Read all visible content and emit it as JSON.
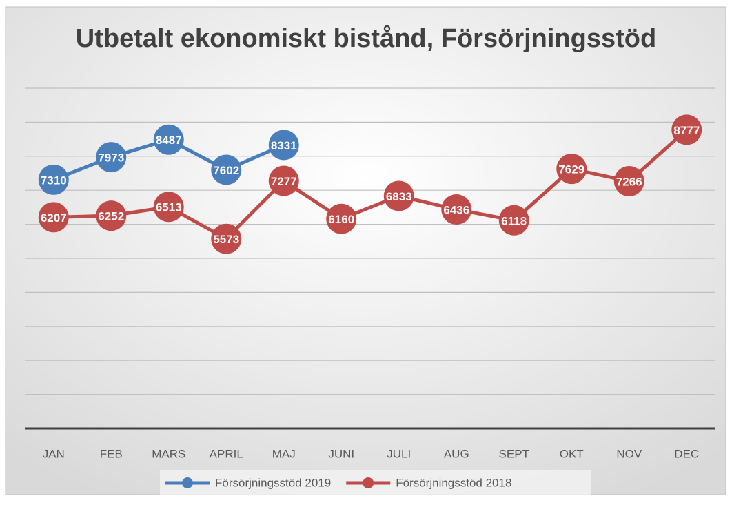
{
  "chart_data": {
    "type": "line",
    "title": "Utbetalt ekonomiskt bistånd, Försörjningsstöd",
    "categories": [
      "JAN",
      "FEB",
      "MARS",
      "APRIL",
      "MAJ",
      "JUNI",
      "JULI",
      "AUG",
      "SEPT",
      "OKT",
      "NOV",
      "DEC"
    ],
    "series": [
      {
        "name": "Försörjningsstöd 2019",
        "color": "#4a7ebb",
        "values": [
          7310,
          7973,
          8487,
          7602,
          8331,
          null,
          null,
          null,
          null,
          null,
          null,
          null
        ]
      },
      {
        "name": "Försörjningsstöd 2018",
        "color": "#be4b48",
        "values": [
          6207,
          6252,
          6513,
          5573,
          7277,
          6160,
          6833,
          6436,
          6118,
          7629,
          7266,
          8777
        ]
      }
    ],
    "ylim": [
      0,
      10000
    ],
    "yticks": [
      0,
      1000,
      2000,
      3000,
      4000,
      5000,
      6000,
      7000,
      8000,
      9000,
      10000
    ],
    "grid": true,
    "legend": "bottom"
  }
}
